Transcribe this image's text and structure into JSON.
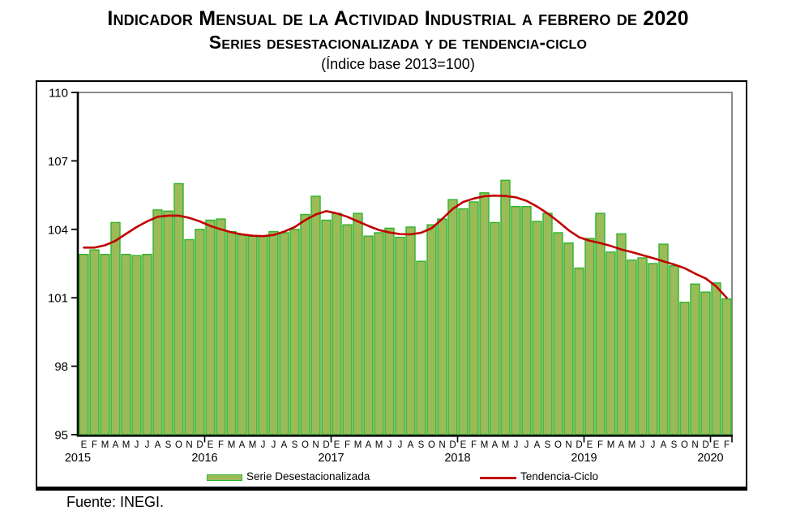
{
  "title": {
    "line1": "Indicador Mensual de la Actividad Industrial a febrero de 2020",
    "line2": "Series desestacionalizada y de tendencia-ciclo",
    "line3": "(Índice base 2013=100)"
  },
  "footer": {
    "source": "Fuente: INEGI."
  },
  "legend": [
    {
      "label": "Serie Desestacionalizada",
      "swatch": "bar-swatch-green"
    },
    {
      "label": "Tendencia-Ciclo",
      "swatch": "line-swatch-red"
    }
  ],
  "chart_data": {
    "type": "bar",
    "title": "Indicador Mensual de la Actividad Industrial a febrero de 2020",
    "subtitle": "Series desestacionalizada y de tendencia-ciclo",
    "note": "(Índice base 2013=100)",
    "ylim": [
      95,
      110
    ],
    "yticks": [
      95,
      98,
      101,
      104,
      107,
      110
    ],
    "grid": "top-right-gray-border-only",
    "legend_position": "bottom-inside",
    "month_letters": [
      "E",
      "F",
      "M",
      "A",
      "M",
      "J",
      "J",
      "A",
      "S",
      "O",
      "N",
      "D"
    ],
    "years": [
      {
        "label": "2015",
        "n": 12
      },
      {
        "label": "2016",
        "n": 12
      },
      {
        "label": "2017",
        "n": 12
      },
      {
        "label": "2018",
        "n": 12
      },
      {
        "label": "2019",
        "n": 12
      },
      {
        "label": "2020",
        "n": 2
      }
    ],
    "series": [
      {
        "name": "Serie Desestacionalizada",
        "type": "bar",
        "fill": "#9BBB59",
        "stroke": "#2DB32D",
        "values": [
          102.9,
          103.1,
          102.9,
          104.3,
          102.9,
          102.85,
          102.9,
          104.85,
          104.8,
          106.0,
          103.55,
          104.0,
          104.4,
          104.45,
          103.9,
          103.75,
          103.7,
          103.7,
          103.9,
          103.85,
          104.0,
          104.65,
          105.45,
          104.4,
          104.7,
          104.2,
          104.7,
          103.7,
          103.85,
          104.05,
          103.65,
          104.1,
          102.6,
          104.2,
          104.45,
          105.3,
          104.9,
          105.2,
          105.6,
          104.3,
          106.15,
          105.0,
          105.0,
          104.35,
          104.7,
          103.85,
          103.4,
          102.3,
          103.6,
          104.7,
          103.0,
          103.8,
          102.65,
          102.75,
          102.5,
          103.35,
          102.4,
          100.8,
          101.6,
          101.25,
          101.65,
          100.95
        ]
      },
      {
        "name": "Tendencia-Ciclo",
        "type": "line",
        "color": "#C00000",
        "values": [
          103.2,
          103.2,
          103.3,
          103.5,
          103.8,
          104.1,
          104.35,
          104.55,
          104.6,
          104.6,
          104.5,
          104.35,
          104.15,
          104.0,
          103.87,
          103.78,
          103.72,
          103.7,
          103.75,
          103.9,
          104.1,
          104.4,
          104.65,
          104.8,
          104.7,
          104.55,
          104.35,
          104.15,
          103.97,
          103.86,
          103.79,
          103.78,
          103.85,
          104.05,
          104.45,
          104.9,
          105.2,
          105.35,
          105.45,
          105.48,
          105.46,
          105.4,
          105.25,
          105.0,
          104.7,
          104.35,
          103.96,
          103.65,
          103.5,
          103.4,
          103.27,
          103.12,
          103.0,
          102.87,
          102.74,
          102.6,
          102.46,
          102.3,
          102.06,
          101.85,
          101.5,
          101.0
        ]
      }
    ],
    "colors": {
      "axis": "#000000",
      "top_right_border": "#8C8C8C"
    }
  }
}
